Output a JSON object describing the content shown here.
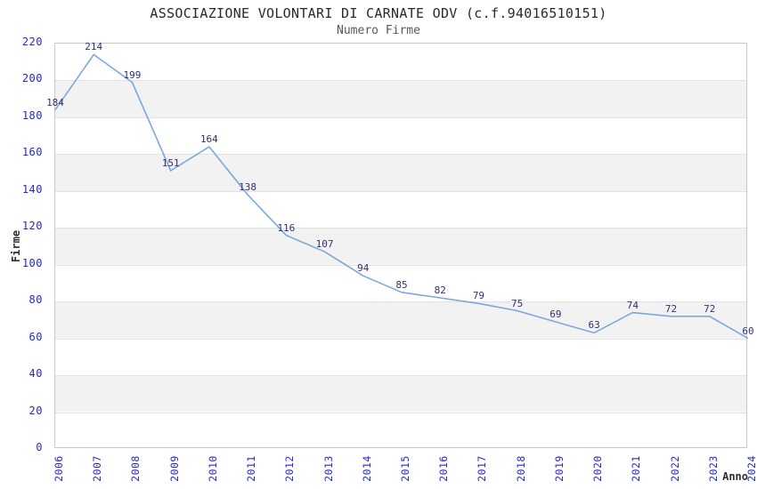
{
  "header": {
    "title": "ASSOCIAZIONE VOLONTARI DI CARNATE ODV (c.f.94016510151)",
    "subtitle": "Numero Firme"
  },
  "chart_data": {
    "type": "line",
    "title": "ASSOCIAZIONE VOLONTARI DI CARNATE ODV (c.f.94016510151)",
    "subtitle": "Numero Firme",
    "xlabel": "Anno",
    "ylabel": "Firme",
    "x": [
      2006,
      2007,
      2008,
      2009,
      2010,
      2011,
      2012,
      2013,
      2014,
      2015,
      2016,
      2017,
      2018,
      2019,
      2020,
      2021,
      2022,
      2023,
      2024
    ],
    "values": [
      184,
      214,
      199,
      151,
      164,
      138,
      116,
      107,
      94,
      85,
      82,
      79,
      75,
      69,
      63,
      74,
      72,
      72,
      60
    ],
    "ylim": [
      0,
      220
    ],
    "ytick_step": 20,
    "grid": "horizontal-bands",
    "legend_position": "none",
    "colors": {
      "line": "#7aa8e0",
      "tick_labels": "#2727ce",
      "point_labels": "#30306e",
      "band": "#f2f2f2",
      "gridline": "#e2e2e2",
      "title": "#2a2a2a",
      "subtitle": "#585858"
    }
  }
}
